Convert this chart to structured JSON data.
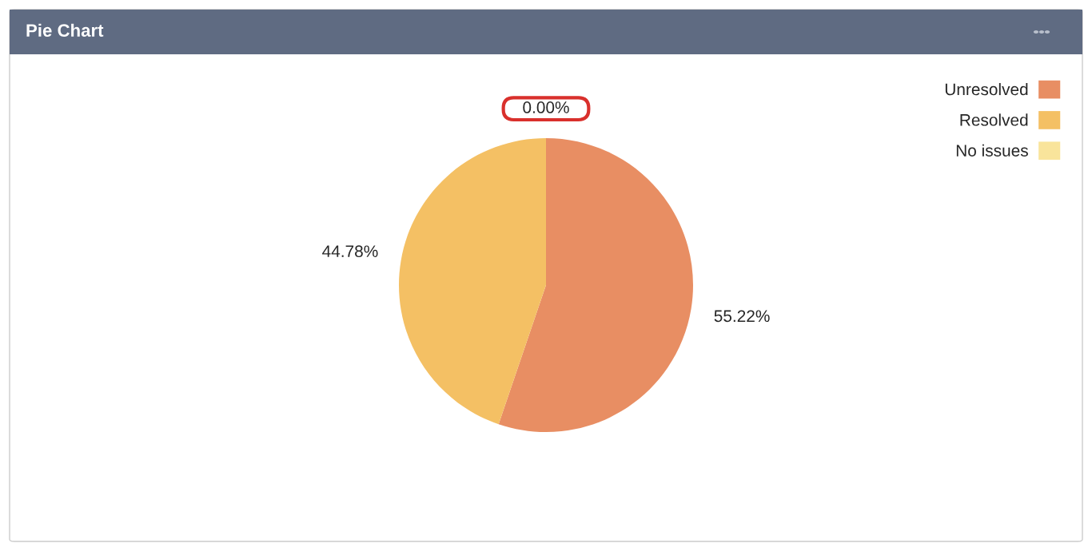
{
  "chart_data": {
    "type": "pie",
    "title": "Pie Chart",
    "categories": [
      "Unresolved",
      "Resolved",
      "No issues"
    ],
    "values": [
      55.22,
      44.78,
      0.0
    ],
    "colors": [
      "#e88e63",
      "#f4c064",
      "#f9e49b"
    ],
    "value_labels": [
      "55.22%",
      "44.78%",
      "0.00%"
    ],
    "legend": "top right"
  }
}
